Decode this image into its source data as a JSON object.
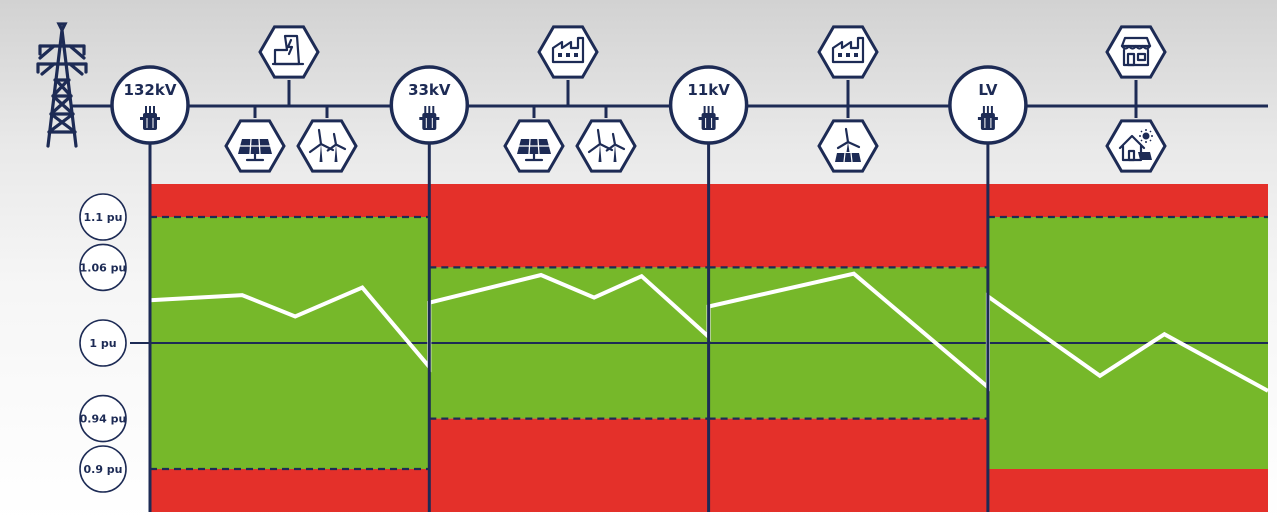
{
  "colors": {
    "navy": "#1d2b55",
    "limit_zone": "#e4302a",
    "ok_zone": "#76b82a",
    "voltage_line": "#ffffff"
  },
  "substations": [
    {
      "label": "132kV",
      "icon": "transformer-icon"
    },
    {
      "label": "33kV",
      "icon": "transformer-icon"
    },
    {
      "label": "11kV",
      "icon": "transformer-icon"
    },
    {
      "label": "LV",
      "icon": "transformer-icon"
    }
  ],
  "connections": [
    {
      "segment": 0,
      "icons": [
        "power-plant-icon",
        "solar-panel-icon",
        "wind-turbine-icon"
      ]
    },
    {
      "segment": 1,
      "icons": [
        "factory-icon",
        "solar-panel-icon",
        "wind-turbine-icon"
      ]
    },
    {
      "segment": 2,
      "icons": [
        "factory-icon",
        "wind-solar-icon"
      ]
    },
    {
      "segment": 3,
      "icons": [
        "shop-icon",
        "solar-house-icon"
      ]
    }
  ],
  "pu_levels": [
    "1.1 pu",
    "1.06 pu",
    "1 pu",
    "0.94 pu",
    "0.9 pu"
  ],
  "pu_values": [
    1.1,
    1.06,
    1.0,
    0.94,
    0.9
  ],
  "segments": [
    {
      "name": "132kV",
      "lower_limit": 0.9,
      "upper_limit": 1.1
    },
    {
      "name": "33kV",
      "lower_limit": 0.94,
      "upper_limit": 1.06
    },
    {
      "name": "11kV",
      "lower_limit": 0.94,
      "upper_limit": 1.06
    },
    {
      "name": "LV",
      "lower_limit": 0.9,
      "upper_limit": 1.1
    }
  ],
  "voltage_profile": [
    {
      "x": 0.0,
      "pu": 1.034
    },
    {
      "x": 0.33,
      "pu": 1.038
    },
    {
      "x": 0.52,
      "pu": 1.021
    },
    {
      "x": 0.76,
      "pu": 1.044
    },
    {
      "x": 1.0,
      "pu": 0.981
    },
    {
      "x": 1.0,
      "pu": 1.032
    },
    {
      "x": 1.4,
      "pu": 1.054
    },
    {
      "x": 1.59,
      "pu": 1.036
    },
    {
      "x": 1.76,
      "pu": 1.053
    },
    {
      "x": 2.0,
      "pu": 1.005
    },
    {
      "x": 2.0,
      "pu": 1.029
    },
    {
      "x": 2.52,
      "pu": 1.055
    },
    {
      "x": 3.0,
      "pu": 0.965
    },
    {
      "x": 3.0,
      "pu": 1.037
    },
    {
      "x": 3.4,
      "pu": 0.974
    },
    {
      "x": 3.63,
      "pu": 1.007
    },
    {
      "x": 4.0,
      "pu": 0.962
    }
  ]
}
